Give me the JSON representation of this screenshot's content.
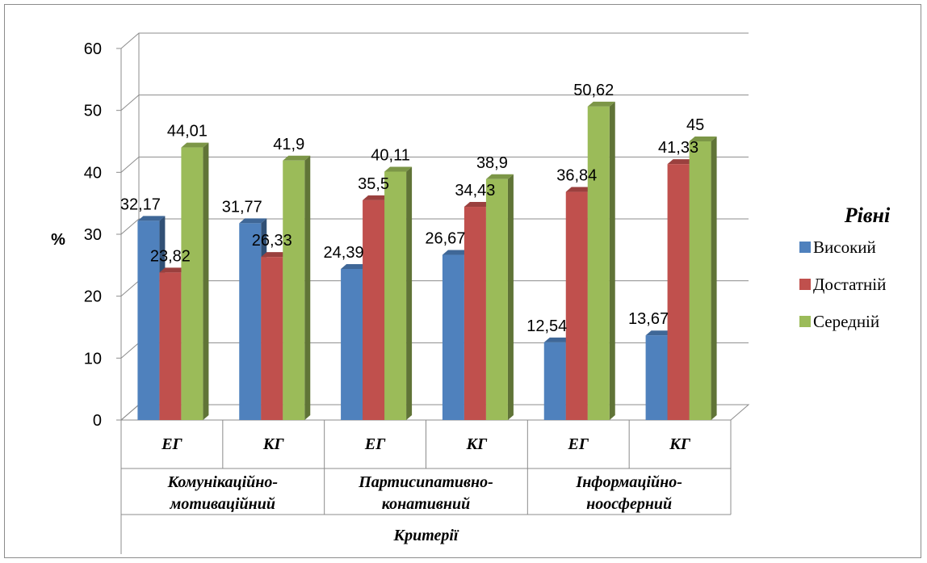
{
  "chart_data": {
    "type": "bar",
    "ylabel": "%",
    "ylim": [
      0,
      60
    ],
    "yticks": [
      0,
      10,
      20,
      30,
      40,
      50,
      60
    ],
    "grid": true,
    "legend_position": "right",
    "legend_title": "Рівні",
    "categories": [
      "ЕГ",
      "КГ",
      "ЕГ",
      "КГ",
      "ЕГ",
      "КГ"
    ],
    "groups": [
      {
        "label_line1": "Комунікаційно-",
        "label_line2": "мотиваційний"
      },
      {
        "label_line1": "Партисипативно-",
        "label_line2": "конативний"
      },
      {
        "label_line1": "Інформаційно-",
        "label_line2": "ноосферний"
      }
    ],
    "xlabel": "Критерії",
    "series": [
      {
        "name": "Високий",
        "color": "#4f81bd",
        "values": [
          32.17,
          31.77,
          24.39,
          26.67,
          12.54,
          13.67
        ],
        "labels": [
          "32,17",
          "31,77",
          "24,39",
          "26,67",
          "12,54",
          "13,67"
        ]
      },
      {
        "name": "Достатній",
        "color": "#c0504d",
        "values": [
          23.82,
          26.33,
          35.5,
          34.43,
          36.84,
          41.33
        ],
        "labels": [
          "23,82",
          "26,33",
          "35,5",
          "34,43",
          "36,84",
          "41,33"
        ]
      },
      {
        "name": "Середній",
        "color": "#9bbb59",
        "values": [
          44.01,
          41.9,
          40.11,
          38.9,
          50.62,
          45
        ],
        "labels": [
          "44,01",
          "41,9",
          "40,11",
          "38,9",
          "50,62",
          "45"
        ]
      }
    ]
  }
}
